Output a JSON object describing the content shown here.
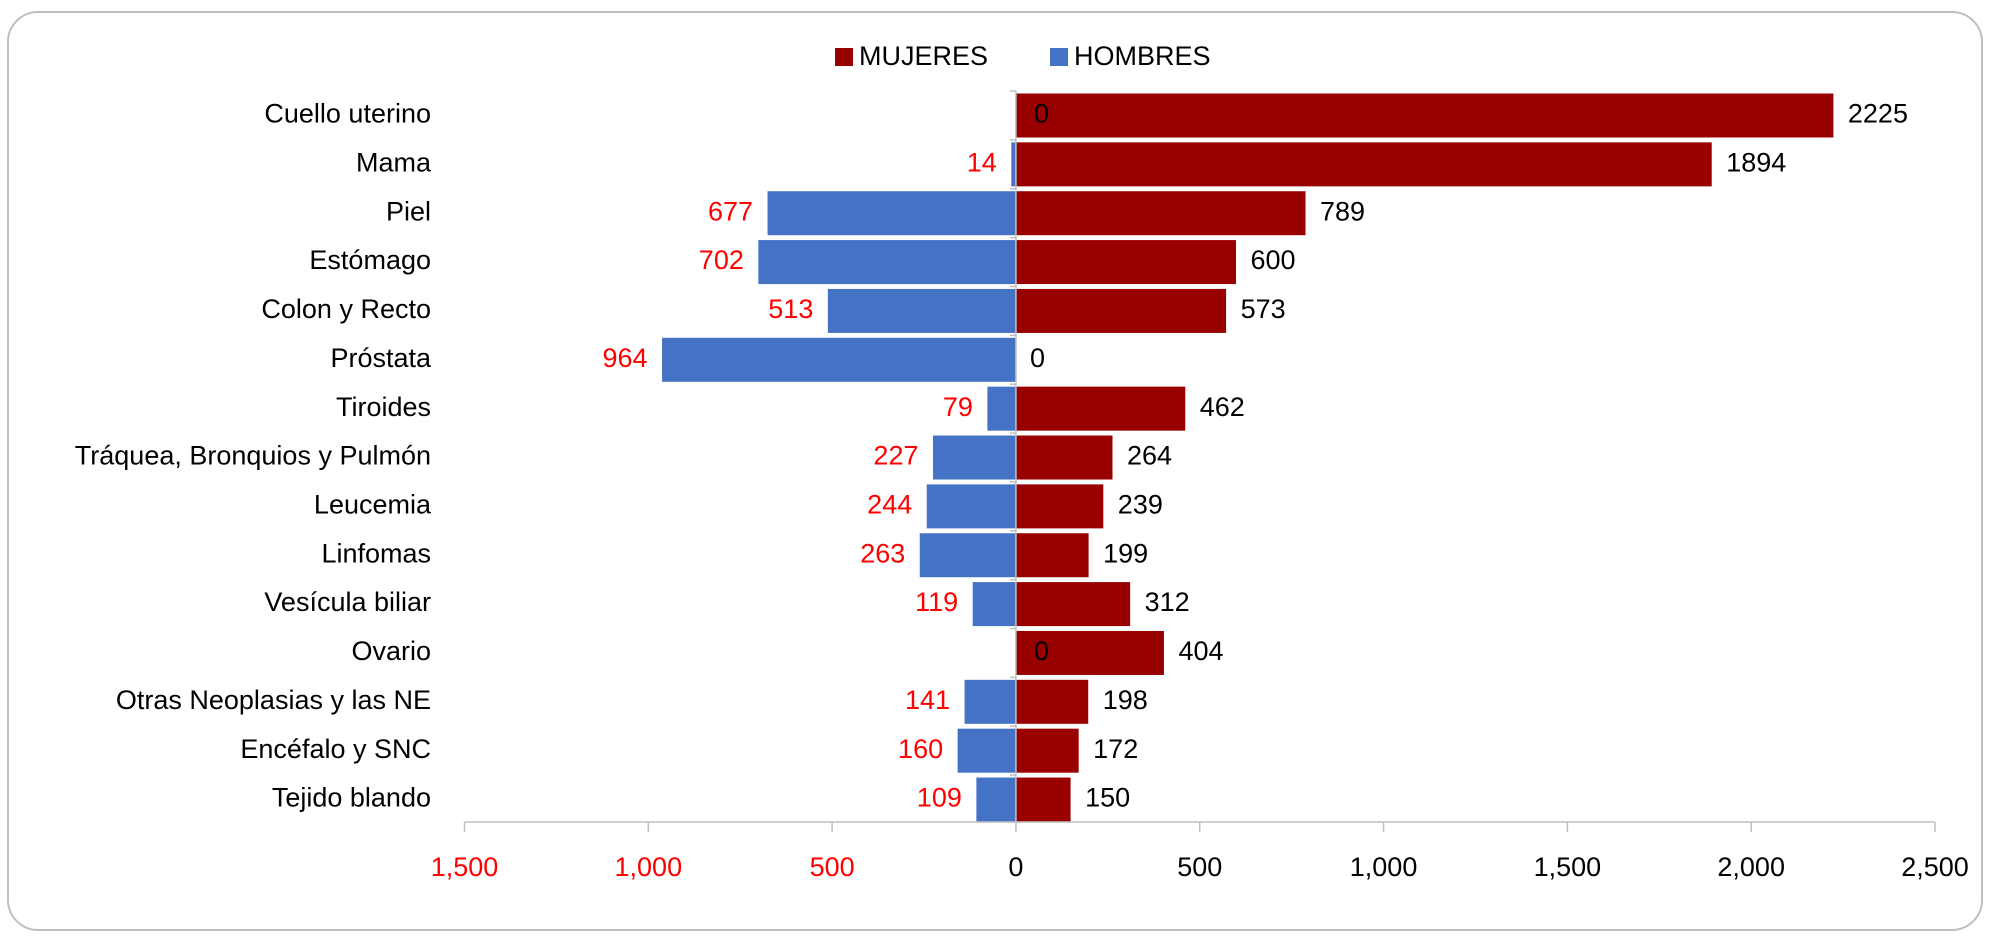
{
  "chart_data": {
    "type": "butterfly_bar",
    "orientation": "horizontal",
    "categories": [
      "Cuello uterino",
      "Mama",
      "Piel",
      "Estómago",
      "Colon y Recto",
      "Próstata",
      "Tiroides",
      "Tráquea, Bronquios y Pulmón",
      "Leucemia",
      "Linfomas",
      "Vesícula biliar",
      "Ovario",
      "Otras Neoplasias y las NE",
      "Encéfalo y SNC",
      "Tejido blando"
    ],
    "series": [
      {
        "name": "MUJERES",
        "color": "#990000",
        "values": [
          2225,
          1894,
          789,
          600,
          573,
          0,
          462,
          264,
          239,
          199,
          312,
          404,
          198,
          172,
          150
        ]
      },
      {
        "name": "HOMBRES",
        "color": "#4472c4",
        "values": [
          0,
          -14,
          -677,
          -702,
          -513,
          -964,
          -79,
          -227,
          -244,
          -263,
          -119,
          0,
          -141,
          -160,
          -109
        ],
        "value_labels": [
          "0",
          "14",
          "677",
          "702",
          "513",
          "964",
          "79",
          "227",
          "244",
          "263",
          "119",
          "0",
          "141",
          "160",
          "109"
        ]
      }
    ],
    "xlim": [
      -1500,
      2500
    ],
    "xticks": [
      {
        "value": -1500,
        "label": "1,500"
      },
      {
        "value": -1000,
        "label": "1,000"
      },
      {
        "value": -500,
        "label": "500"
      },
      0,
      500,
      {
        "value": 1000,
        "label": "1,000"
      },
      {
        "value": 1500,
        "label": "1,500"
      },
      {
        "value": 2000,
        "label": "2,000"
      },
      {
        "value": 2500,
        "label": "2,500"
      }
    ],
    "negative_label_color": "#ff0000",
    "legend": "top"
  }
}
